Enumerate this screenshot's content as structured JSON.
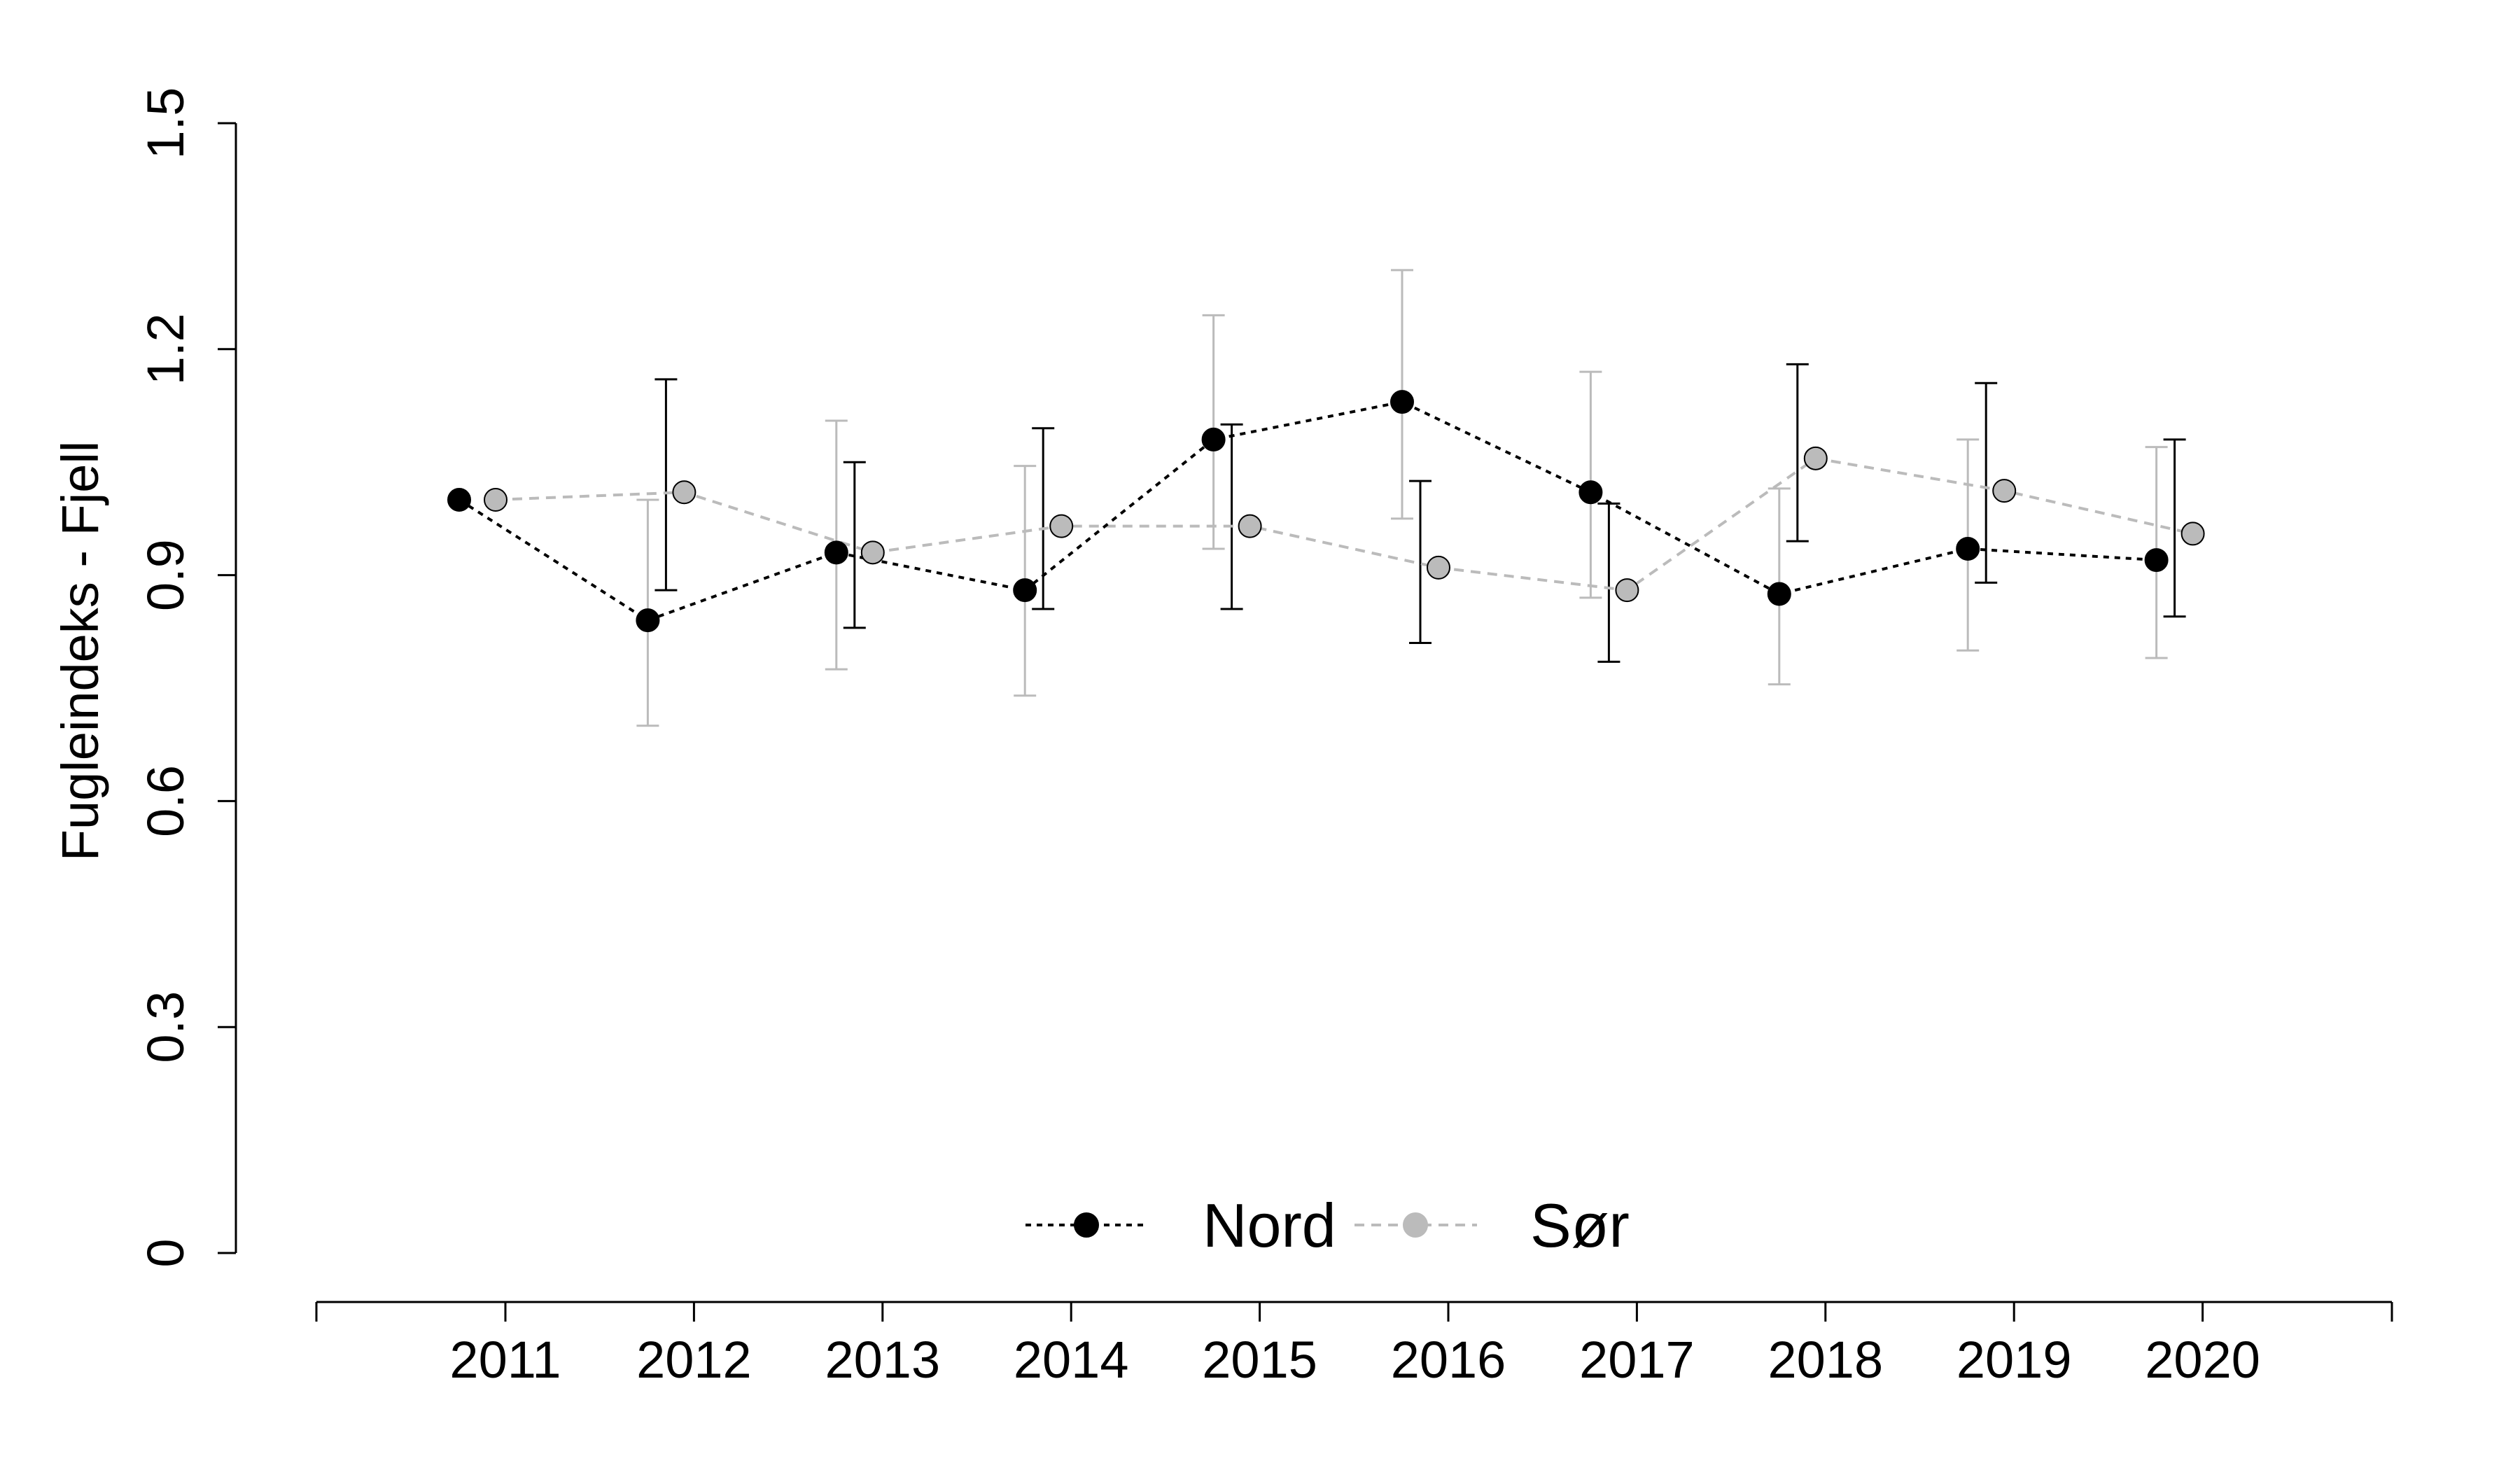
{
  "chart_data": {
    "type": "line",
    "title": "",
    "xlabel": "",
    "ylabel": "Fugleindeks - Fjell",
    "ylim": [
      0,
      1.5
    ],
    "yticks": [
      "0",
      "0.3",
      "0.6",
      "0.9",
      "1.2",
      "1.5"
    ],
    "x": [
      "2011",
      "2012",
      "2013",
      "2014",
      "2015",
      "2016",
      "2017",
      "2018",
      "2019",
      "2020"
    ],
    "grid": false,
    "legend_position": "bottom-center",
    "series": [
      {
        "name": "Nord",
        "color": "#000000",
        "values": [
          1.0,
          0.84,
          0.93,
          0.88,
          1.08,
          1.13,
          1.01,
          0.875,
          0.935,
          0.92
        ],
        "lower": [
          null,
          null,
          null,
          null,
          null,
          null,
          null,
          null,
          null,
          null
        ],
        "upper": [
          null,
          null,
          null,
          null,
          null,
          null,
          null,
          null,
          null,
          null
        ]
      },
      {
        "name": "Sør",
        "color": "#bbbbbb",
        "values": [
          1.0,
          1.01,
          0.93,
          0.965,
          0.965,
          0.91,
          0.88,
          1.055,
          1.012,
          0.955
        ],
        "lower": [
          null,
          null,
          null,
          null,
          null,
          null,
          null,
          null,
          null,
          null
        ],
        "upper": [
          null,
          null,
          null,
          null,
          null,
          null,
          null,
          null,
          null,
          null
        ]
      }
    ],
    "error_bars": [
      {
        "series": "Nord",
        "lower": [
          null,
          0.7,
          0.775,
          0.74,
          0.935,
          0.975,
          0.87,
          0.755,
          0.8,
          0.79
        ],
        "upper": [
          null,
          1.0,
          1.105,
          1.045,
          1.245,
          1.305,
          1.17,
          1.015,
          1.08,
          1.07
        ],
        "color": "#bbbbbb"
      },
      {
        "series": "Sør",
        "lower": [
          null,
          0.88,
          0.83,
          0.855,
          0.855,
          0.81,
          0.785,
          0.945,
          0.89,
          0.845
        ],
        "upper": [
          null,
          1.16,
          1.05,
          1.095,
          1.1,
          1.025,
          0.995,
          1.18,
          1.155,
          1.08
        ],
        "color": "#000000"
      }
    ],
    "line_styles": {
      "Nord": "dotted-black",
      "Sør": "dashed-gray"
    }
  }
}
